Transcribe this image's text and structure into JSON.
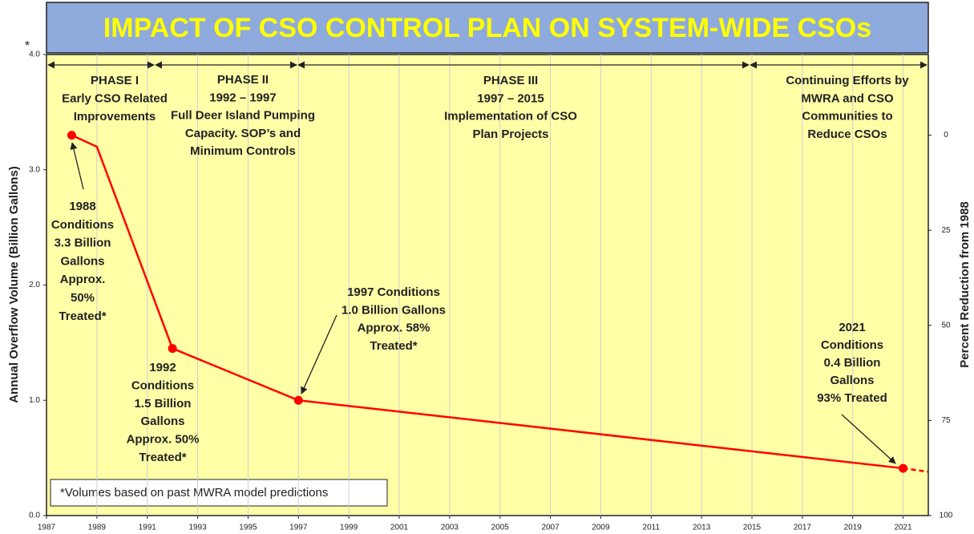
{
  "chart_data": {
    "type": "line",
    "title": "IMPACT OF CSO CONTROL PLAN ON SYSTEM-WIDE CSOs",
    "y_label": "Annual Overflow Volume (Billion Gallons)",
    "y2_label": "Percent Reduction from 1988",
    "asterisk": "*",
    "footnote": "*Volumes based on past MWRA model predictions",
    "xlim": [
      1987,
      2022
    ],
    "xticks": [
      1987,
      1989,
      1991,
      1993,
      1995,
      1997,
      1999,
      2001,
      2003,
      2005,
      2007,
      2009,
      2011,
      2013,
      2015,
      2017,
      2019,
      2021
    ],
    "ylim": [
      0,
      4
    ],
    "yticks": [
      {
        "value": 0,
        "label": "0.0"
      },
      {
        "value": 1,
        "label": "1.0"
      },
      {
        "value": 2,
        "label": "2.0"
      },
      {
        "value": 3,
        "label": "3.0"
      },
      {
        "value": 4,
        "label": "4.0"
      }
    ],
    "y2lim": [
      100,
      -21.2
    ],
    "y2ticks": [
      0,
      25,
      50,
      75,
      100
    ],
    "grid": true,
    "series": [
      {
        "color": "#ff0000",
        "style": "solid",
        "x": [
          1988,
          1989,
          1992,
          1997,
          2021
        ],
        "values": [
          3.3,
          3.2,
          1.45,
          1.0,
          0.41
        ],
        "markers": [
          true,
          false,
          true,
          true,
          true
        ]
      },
      {
        "color": "#ff0000",
        "style": "dashed",
        "x": [
          2021,
          2022
        ],
        "values": [
          0.41,
          0.38
        ],
        "markers": [
          false,
          false
        ]
      }
    ],
    "phases": [
      {
        "lines": [
          "PHASE I",
          "Early CSO Related",
          "Improvements"
        ]
      },
      {
        "lines": [
          "PHASE II",
          "1992 – 1997",
          "Full Deer Island Pumping",
          "Capacity. SOP’s and",
          "Minimum Controls"
        ]
      },
      {
        "lines": [
          "PHASE III",
          "1997 – 2015",
          "Implementation of CSO",
          "Plan Projects"
        ]
      },
      {
        "lines": [
          "Continuing Efforts by",
          "MWRA and CSO",
          "Communities to",
          "Reduce CSOs"
        ]
      }
    ],
    "annotations": [
      {
        "lines": [
          "1988",
          "Conditions",
          "3.3 Billion",
          "Gallons",
          "Approx.",
          "50%",
          "Treated*"
        ]
      },
      {
        "lines": [
          "1992",
          "Conditions",
          "1.5 Billion",
          "Gallons",
          "Approx. 50%",
          "Treated*"
        ]
      },
      {
        "lines": [
          "1997 Conditions",
          "1.0 Billion Gallons",
          "Approx. 58%",
          "Treated*"
        ]
      },
      {
        "lines": [
          "2021",
          "Conditions",
          "0.4 Billion",
          "Gallons",
          "93% Treated"
        ]
      }
    ]
  }
}
